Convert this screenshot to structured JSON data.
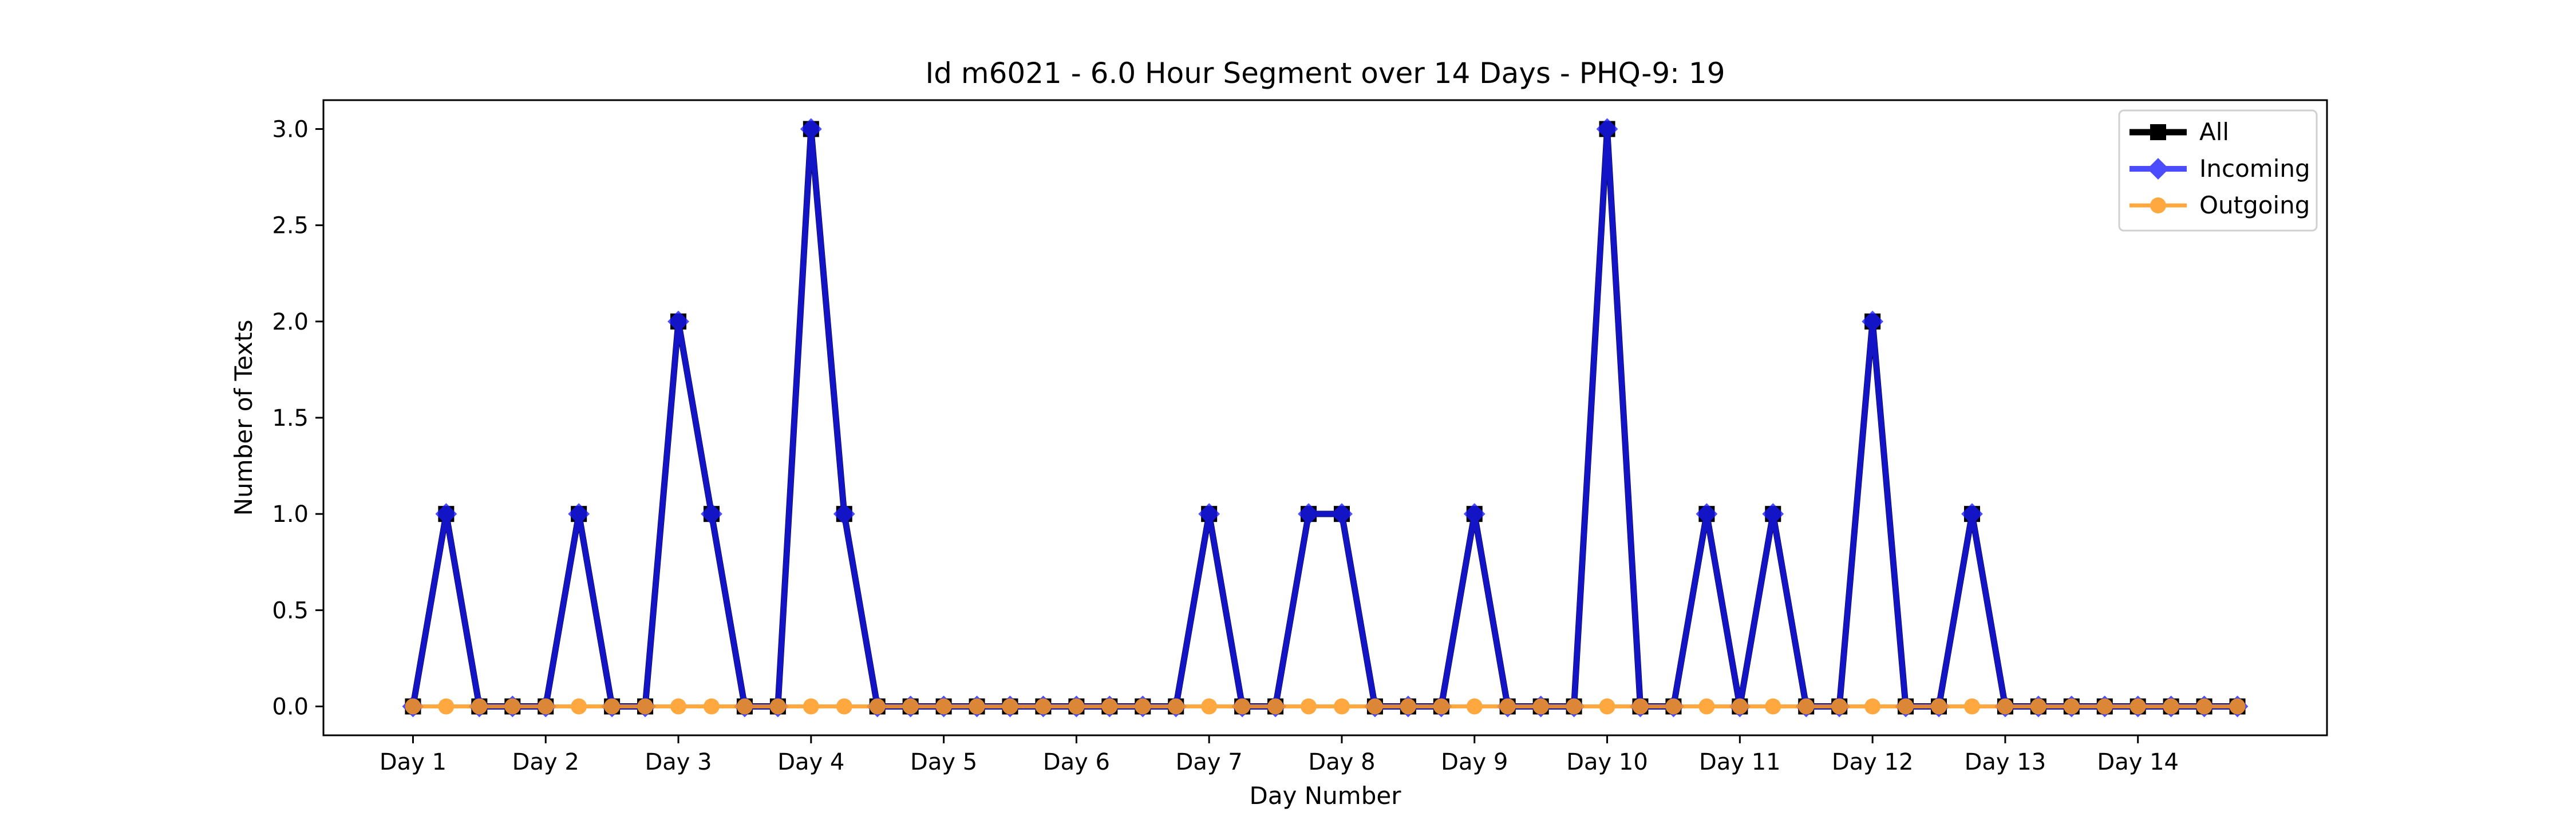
{
  "chart_data": {
    "type": "line",
    "title": "Id m6021 - 6.0 Hour Segment over 14 Days - PHQ-9: 19",
    "xlabel": "Day Number",
    "ylabel": "Number of Texts",
    "ylim": [
      -0.15,
      3.15
    ],
    "yticks": [
      0.0,
      0.5,
      1.0,
      1.5,
      2.0,
      2.5,
      3.0
    ],
    "ytick_labels": [
      "0.0",
      "0.5",
      "1.0",
      "1.5",
      "2.0",
      "2.5",
      "3.0"
    ],
    "xticks": [
      0,
      4,
      8,
      12,
      16,
      20,
      24,
      28,
      32,
      36,
      40,
      44,
      48,
      52
    ],
    "xtick_labels": [
      "Day 1",
      "Day 2",
      "Day 3",
      "Day 4",
      "Day 5",
      "Day 6",
      "Day 7",
      "Day 8",
      "Day 9",
      "Day 10",
      "Day 11",
      "Day 12",
      "Day 13",
      "Day 14"
    ],
    "x": [
      0,
      1,
      2,
      3,
      4,
      5,
      6,
      7,
      8,
      9,
      10,
      11,
      12,
      13,
      14,
      15,
      16,
      17,
      18,
      19,
      20,
      21,
      22,
      23,
      24,
      25,
      26,
      27,
      28,
      29,
      30,
      31,
      32,
      33,
      34,
      35,
      36,
      37,
      38,
      39,
      40,
      41,
      42,
      43,
      44,
      45,
      46,
      47,
      48,
      49,
      50,
      51,
      52,
      53,
      54,
      55
    ],
    "xlim": [
      -2.7,
      57.7
    ],
    "grid": false,
    "legend_position": "top-right",
    "series": [
      {
        "name": "All",
        "color": "#000000",
        "marker": "square",
        "values": [
          0,
          1,
          0,
          0,
          0,
          1,
          0,
          0,
          2,
          1,
          0,
          0,
          3,
          1,
          0,
          0,
          0,
          0,
          0,
          0,
          0,
          0,
          0,
          0,
          1,
          0,
          0,
          1,
          1,
          0,
          0,
          0,
          1,
          0,
          0,
          0,
          3,
          0,
          0,
          1,
          0,
          1,
          0,
          0,
          2,
          0,
          0,
          1,
          0,
          0,
          0,
          0,
          0,
          0,
          0,
          0
        ]
      },
      {
        "name": "Incoming",
        "color": "#1a1aff",
        "marker": "diamond",
        "values": [
          0,
          1,
          0,
          0,
          0,
          1,
          0,
          0,
          2,
          1,
          0,
          0,
          3,
          1,
          0,
          0,
          0,
          0,
          0,
          0,
          0,
          0,
          0,
          0,
          1,
          0,
          0,
          1,
          1,
          0,
          0,
          0,
          1,
          0,
          0,
          0,
          3,
          0,
          0,
          1,
          0,
          1,
          0,
          0,
          2,
          0,
          0,
          1,
          0,
          0,
          0,
          0,
          0,
          0,
          0,
          0
        ]
      },
      {
        "name": "Outgoing",
        "color": "#ff9a1f",
        "marker": "circle",
        "values": [
          0,
          0,
          0,
          0,
          0,
          0,
          0,
          0,
          0,
          0,
          0,
          0,
          0,
          0,
          0,
          0,
          0,
          0,
          0,
          0,
          0,
          0,
          0,
          0,
          0,
          0,
          0,
          0,
          0,
          0,
          0,
          0,
          0,
          0,
          0,
          0,
          0,
          0,
          0,
          0,
          0,
          0,
          0,
          0,
          0,
          0,
          0,
          0,
          0,
          0,
          0,
          0,
          0,
          0,
          0,
          0
        ]
      }
    ]
  }
}
